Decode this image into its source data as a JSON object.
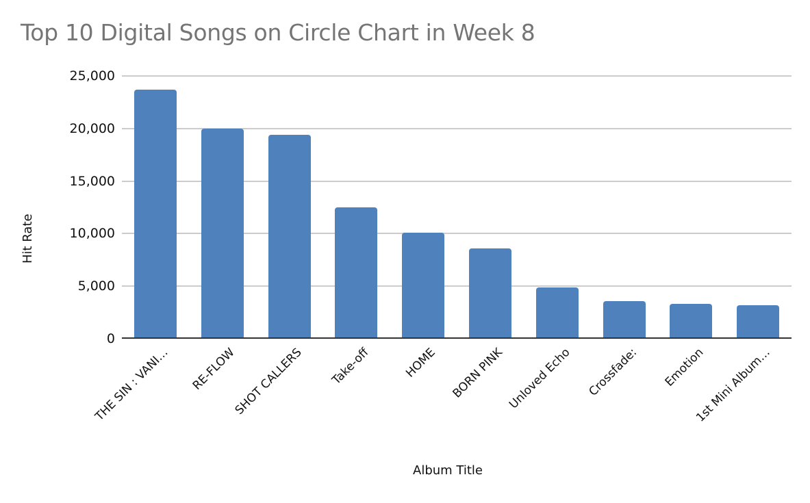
{
  "chart_data": {
    "type": "bar",
    "title": "Top 10 Digital Songs on Circle Chart in Week 8",
    "xlabel": "Album Title",
    "ylabel": "Hit Rate",
    "categories": [
      "THE SIN : VANI…",
      "RE-FLOW",
      "SHOT CALLERS",
      "Take-off",
      "HOME",
      "BORN PINK",
      "Unloved Echo",
      "Crossfade:",
      "Emotion",
      "1st Mini Album…"
    ],
    "values": [
      23700,
      20000,
      19400,
      12500,
      10100,
      8600,
      4900,
      3600,
      3350,
      3200
    ],
    "ylim": [
      0,
      25000
    ],
    "yticks": [
      "0",
      "5,000",
      "10,000",
      "15,000",
      "20,000",
      "25,000"
    ],
    "grid": true,
    "legend": "none",
    "bar_color": "#4f81bd"
  }
}
